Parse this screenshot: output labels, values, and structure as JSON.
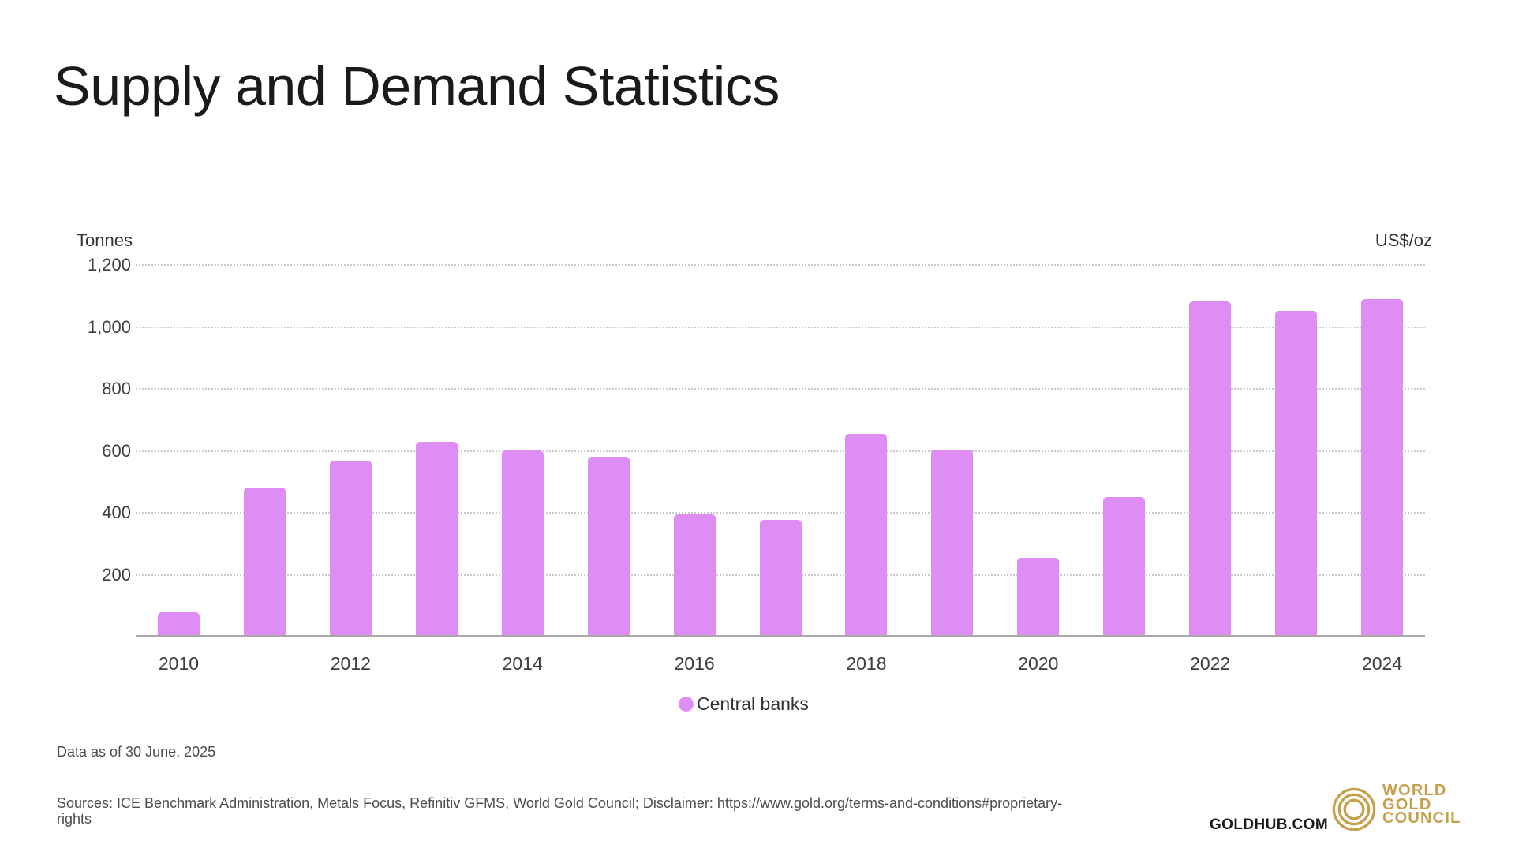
{
  "header": {
    "title": "Supply and Demand Statistics"
  },
  "chart_data": {
    "type": "bar",
    "title": "Supply and Demand Statistics",
    "ylabel_left": "Tonnes",
    "ylabel_right": "US$/oz",
    "categories": [
      "2010",
      "2011",
      "2012",
      "2013",
      "2014",
      "2015",
      "2016",
      "2017",
      "2018",
      "2019",
      "2020",
      "2021",
      "2022",
      "2023",
      "2024"
    ],
    "values": [
      79,
      481,
      569,
      630,
      601,
      580,
      394,
      378,
      656,
      605,
      255,
      450,
      1082,
      1051,
      1090
    ],
    "series_name": "Central banks",
    "bar_color": "#dd8df3",
    "ylim": [
      0,
      1200
    ],
    "ytick_values": [
      200,
      400,
      600,
      800,
      1000,
      1200
    ],
    "ytick_labels": [
      "200",
      "400",
      "600",
      "800",
      "1,000",
      "1,200"
    ],
    "xtick_labels_shown": [
      "2010",
      "2012",
      "2014",
      "2016",
      "2018",
      "2020",
      "2022",
      "2024"
    ],
    "grid": "horizontal-dotted",
    "grid_color": "#c9c9c9",
    "axis_line_color": "#a8a8a8",
    "legend": {
      "label": "Central banks",
      "color": "#dd8df3",
      "position": "bottom-center"
    }
  },
  "footer": {
    "data_as_of": "Data as of 30 June, 2025",
    "sources_line1": "Sources: ICE Benchmark Administration, Metals Focus, Refinitiv GFMS, World Gold Council; Disclaimer: https://www.gold.org/terms-and-conditions#proprietary-",
    "sources_line2": "rights",
    "goldhub": "GOLDHUB.COM",
    "logo": {
      "line1": "WORLD",
      "line2": "GOLD",
      "line3": "COUNCIL",
      "gold_color": "#c6a04c"
    }
  }
}
